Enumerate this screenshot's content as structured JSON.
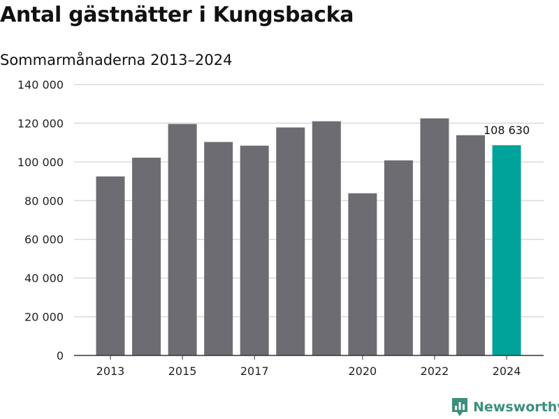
{
  "title": "Antal gästnätter i Kungsbacka",
  "subtitle": "Sommarmånaderna 2013–2024",
  "brand": {
    "name": "Newsworthy",
    "color": "#3c8f7c",
    "icon": "bar-chart-pin-icon"
  },
  "colors": {
    "bar": "#6d6c72",
    "highlight": "#00a39a",
    "grid": "#d9d9d9",
    "axis": "#333333"
  },
  "chart_data": {
    "type": "bar",
    "title": "Antal gästnätter i Kungsbacka",
    "subtitle": "Sommarmånaderna 2013–2024",
    "categories": [
      "2013",
      "2014",
      "2015",
      "2016",
      "2017",
      "2018",
      "2019",
      "2020",
      "2021",
      "2022",
      "2023",
      "2024"
    ],
    "values": [
      92500,
      102200,
      119600,
      110300,
      108400,
      117800,
      121000,
      83800,
      100800,
      122500,
      113800,
      108630
    ],
    "highlight_index": 11,
    "annotations": [
      {
        "category": "2024",
        "text": "108 630"
      }
    ],
    "x_tick_labels": [
      "2013",
      "2015",
      "2017",
      "2020",
      "2022",
      "2024"
    ],
    "y_ticks": [
      0,
      20000,
      40000,
      60000,
      80000,
      100000,
      120000,
      140000
    ],
    "y_tick_labels": [
      "0",
      "20 000",
      "40 000",
      "60 000",
      "80 000",
      "100 000",
      "120 000",
      "140 000"
    ],
    "ylim": [
      0,
      140000
    ],
    "grid": true,
    "xlabel": "",
    "ylabel": ""
  }
}
